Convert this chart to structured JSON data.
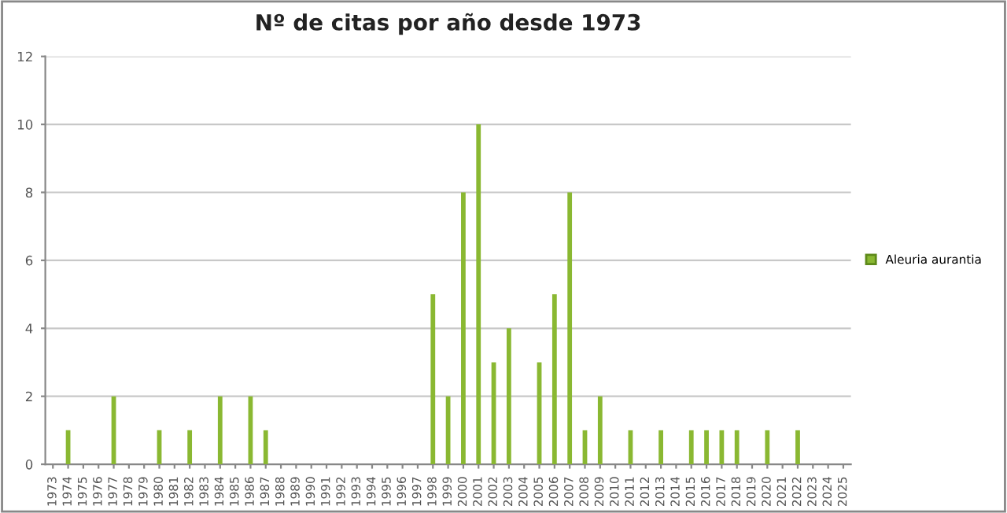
{
  "chart_data": {
    "type": "bar",
    "title": "Nº de citas por año desde 1973",
    "categories": [
      "1973",
      "1974",
      "1975",
      "1976",
      "1977",
      "1978",
      "1979",
      "1980",
      "1981",
      "1982",
      "1983",
      "1984",
      "1985",
      "1986",
      "1987",
      "1988",
      "1989",
      "1990",
      "1991",
      "1992",
      "1993",
      "1994",
      "1995",
      "1996",
      "1997",
      "1998",
      "1999",
      "2000",
      "2001",
      "2002",
      "2003",
      "2004",
      "2005",
      "2006",
      "2007",
      "2008",
      "2009",
      "2010",
      "2011",
      "2012",
      "2013",
      "2014",
      "2015",
      "2016",
      "2017",
      "2018",
      "2019",
      "2020",
      "2021",
      "2022",
      "2023",
      "2024",
      "2025"
    ],
    "series": [
      {
        "name": "Aleuria aurantia",
        "color": "#8ab832",
        "values": [
          0,
          1,
          0,
          0,
          2,
          0,
          0,
          1,
          0,
          1,
          0,
          2,
          0,
          2,
          1,
          0,
          0,
          0,
          0,
          0,
          0,
          0,
          0,
          0,
          0,
          5,
          2,
          8,
          10,
          3,
          4,
          0,
          3,
          5,
          8,
          1,
          2,
          0,
          1,
          0,
          1,
          0,
          1,
          1,
          1,
          1,
          0,
          1,
          0,
          1,
          0,
          0,
          0
        ]
      }
    ],
    "ylim": [
      0,
      12
    ],
    "yticks": [
      0,
      2,
      4,
      6,
      8,
      10,
      12
    ],
    "grid": "y",
    "legend": "right"
  }
}
